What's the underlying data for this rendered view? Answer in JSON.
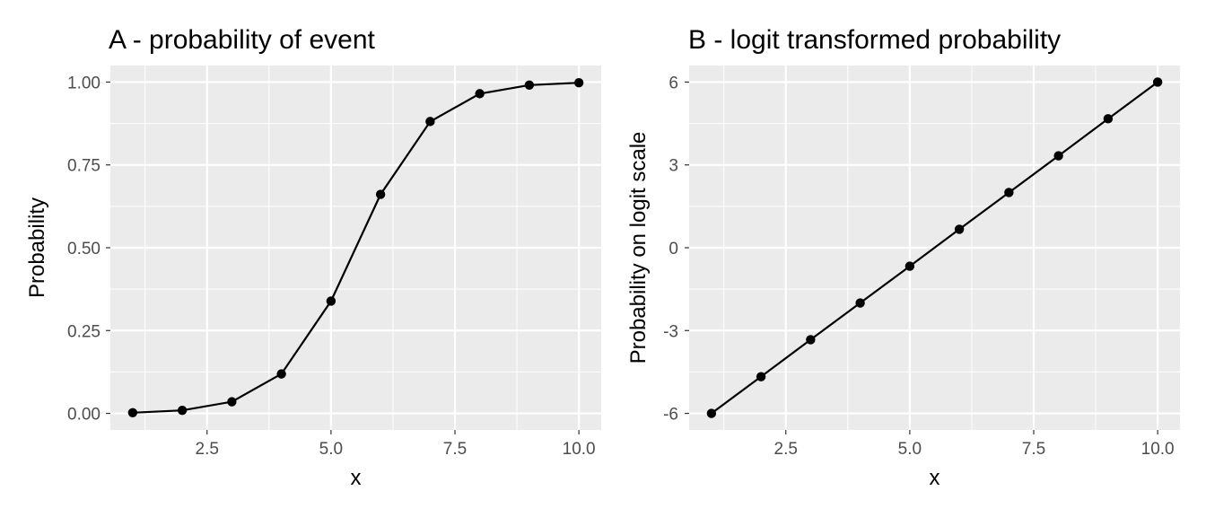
{
  "chart_data": [
    {
      "type": "line",
      "title": "A - probability of event",
      "xlabel": "x",
      "ylabel": "Probability",
      "xlim": [
        0.55,
        10.45
      ],
      "ylim": [
        -0.05,
        1.05
      ],
      "x_ticks": [
        2.5,
        5.0,
        7.5,
        10.0
      ],
      "x_tick_labels": [
        "2.5",
        "5.0",
        "7.5",
        "10.0"
      ],
      "y_ticks": [
        0,
        0.25,
        0.5,
        0.75,
        1.0
      ],
      "y_tick_labels": [
        "0.00",
        "0.25",
        "0.50",
        "0.75",
        "1.00"
      ],
      "grid": true,
      "x": [
        1,
        2,
        3,
        4,
        5,
        6,
        7,
        8,
        9,
        10
      ],
      "y": [
        0.002,
        0.009,
        0.035,
        0.119,
        0.339,
        0.661,
        0.881,
        0.965,
        0.991,
        0.998
      ],
      "colors": {
        "panel": "#ebebeb",
        "grid": "#ffffff",
        "line": "#000000",
        "point": "#000000"
      }
    },
    {
      "type": "line",
      "title": "B - logit transformed probability",
      "xlabel": "x",
      "ylabel": "Probability on logit scale",
      "xlim": [
        0.55,
        10.45
      ],
      "ylim": [
        -6.6,
        6.6
      ],
      "x_ticks": [
        2.5,
        5.0,
        7.5,
        10.0
      ],
      "x_tick_labels": [
        "2.5",
        "5.0",
        "7.5",
        "10.0"
      ],
      "y_ticks": [
        -6,
        -3,
        0,
        3,
        6
      ],
      "y_tick_labels": [
        "-6",
        "-3",
        "0",
        "3",
        "6"
      ],
      "grid": true,
      "x": [
        1,
        2,
        3,
        4,
        5,
        6,
        7,
        8,
        9,
        10
      ],
      "y": [
        -6.0,
        -4.67,
        -3.33,
        -2.0,
        -0.67,
        0.67,
        2.0,
        3.33,
        4.67,
        6.0
      ],
      "colors": {
        "panel": "#ebebeb",
        "grid": "#ffffff",
        "line": "#000000",
        "point": "#000000"
      }
    }
  ]
}
